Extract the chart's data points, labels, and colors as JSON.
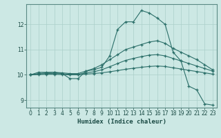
{
  "xlabel": "Humidex (Indice chaleur)",
  "ylabel": "",
  "bg_color": "#cce8e4",
  "line_color": "#2a6e68",
  "grid_color": "#aacfca",
  "xlim": [
    -0.5,
    23.5
  ],
  "ylim": [
    8.7,
    12.8
  ],
  "yticks": [
    9,
    10,
    11,
    12
  ],
  "xticks": [
    0,
    1,
    2,
    3,
    4,
    5,
    6,
    7,
    8,
    9,
    10,
    11,
    12,
    13,
    14,
    15,
    16,
    17,
    18,
    19,
    20,
    21,
    22,
    23
  ],
  "series": [
    {
      "x": [
        0,
        1,
        2,
        3,
        4,
        5,
        6,
        7,
        8,
        9,
        10,
        11,
        12,
        13,
        14,
        15,
        16,
        17,
        18,
        19,
        20,
        21,
        22,
        23
      ],
      "y": [
        10.0,
        10.1,
        10.1,
        10.1,
        10.05,
        9.85,
        9.85,
        10.15,
        10.2,
        10.3,
        10.75,
        11.8,
        12.1,
        12.1,
        12.55,
        12.45,
        12.25,
        12.0,
        10.9,
        10.55,
        9.55,
        9.4,
        8.85,
        8.8
      ]
    },
    {
      "x": [
        0,
        1,
        2,
        3,
        4,
        5,
        6,
        7,
        8,
        9,
        10,
        11,
        12,
        13,
        14,
        15,
        16,
        17,
        18,
        19,
        20,
        21,
        22,
        23
      ],
      "y": [
        10.0,
        10.05,
        10.08,
        10.1,
        10.08,
        10.05,
        10.05,
        10.15,
        10.25,
        10.4,
        10.6,
        10.8,
        11.0,
        11.1,
        11.2,
        11.3,
        11.35,
        11.25,
        11.05,
        10.9,
        10.75,
        10.6,
        10.4,
        10.2
      ]
    },
    {
      "x": [
        0,
        1,
        2,
        3,
        4,
        5,
        6,
        7,
        8,
        9,
        10,
        11,
        12,
        13,
        14,
        15,
        16,
        17,
        18,
        19,
        20,
        21,
        22,
        23
      ],
      "y": [
        10.0,
        10.03,
        10.05,
        10.05,
        10.04,
        10.02,
        10.02,
        10.08,
        10.12,
        10.2,
        10.32,
        10.45,
        10.57,
        10.65,
        10.72,
        10.78,
        10.8,
        10.75,
        10.65,
        10.55,
        10.45,
        10.35,
        10.25,
        10.15
      ]
    },
    {
      "x": [
        0,
        1,
        2,
        3,
        4,
        5,
        6,
        7,
        8,
        9,
        10,
        11,
        12,
        13,
        14,
        15,
        16,
        17,
        18,
        19,
        20,
        21,
        22,
        23
      ],
      "y": [
        10.0,
        10.01,
        10.02,
        10.02,
        10.01,
        10.0,
        10.0,
        10.03,
        10.05,
        10.08,
        10.12,
        10.17,
        10.22,
        10.26,
        10.3,
        10.33,
        10.35,
        10.33,
        10.28,
        10.23,
        10.18,
        10.13,
        10.08,
        10.03
      ]
    }
  ]
}
